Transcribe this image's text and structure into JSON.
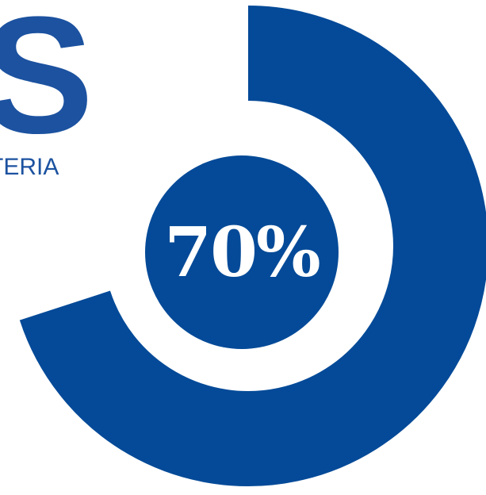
{
  "brand": {
    "letter": "S",
    "subtitle": "TERIA"
  },
  "gauge": {
    "value_label": "70%",
    "progress": 0.7,
    "color": "#044a98"
  }
}
